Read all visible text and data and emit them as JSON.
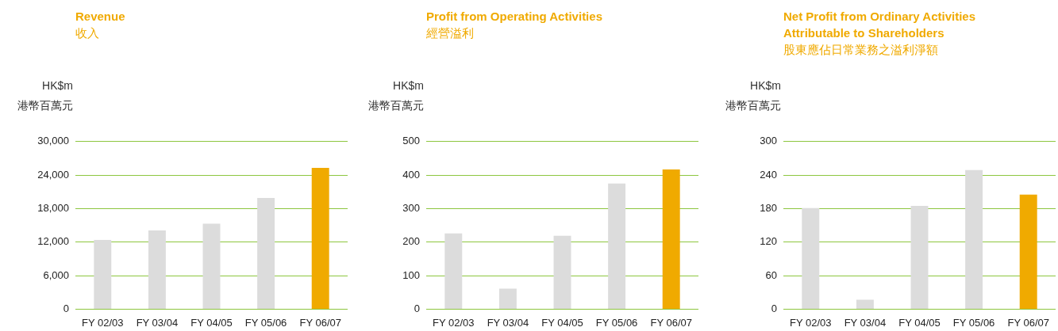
{
  "chart_data": [
    {
      "type": "bar",
      "title": "Revenue",
      "subtitle": "收入",
      "ylabel": "HK$m\n港幣百萬元",
      "categories": [
        "FY 02/03",
        "FY 03/04",
        "FY 04/05",
        "FY 05/06",
        "FY 06/07"
      ],
      "values": [
        12400,
        14100,
        15300,
        19900,
        25300
      ],
      "colors": [
        "#dcdcdc",
        "#dcdcdc",
        "#dcdcdc",
        "#dcdcdc",
        "#f0aa00"
      ],
      "ylim": [
        0,
        30000
      ],
      "yticks": [
        {
          "value": 0,
          "label": "0"
        },
        {
          "value": 6000,
          "label": "6,000"
        },
        {
          "value": 12000,
          "label": "12,000"
        },
        {
          "value": 18000,
          "label": "18,000"
        },
        {
          "value": 24000,
          "label": "24,000"
        },
        {
          "value": 30000,
          "label": "30,000"
        }
      ],
      "grid": "y"
    },
    {
      "type": "bar",
      "title": "Profit from Operating Activities",
      "subtitle": "經營溢利",
      "ylabel": "HK$m\n港幣百萬元",
      "categories": [
        "FY 02/03",
        "FY 03/04",
        "FY 04/05",
        "FY 05/06",
        "FY 06/07"
      ],
      "values": [
        226,
        61,
        219,
        375,
        417
      ],
      "colors": [
        "#dcdcdc",
        "#dcdcdc",
        "#dcdcdc",
        "#dcdcdc",
        "#f0aa00"
      ],
      "ylim": [
        0,
        500
      ],
      "yticks": [
        0,
        100,
        200,
        300,
        400,
        500
      ],
      "grid": "y"
    },
    {
      "type": "bar",
      "title": "Net Profit from Ordinary Activities Attributable to Shareholders",
      "subtitle": "股東應佔日常業務之溢利淨額",
      "ylabel": "HK$m\n港幣百萬元",
      "categories": [
        "FY 02/03",
        "FY 03/04",
        "FY 04/05",
        "FY 05/06",
        "FY 06/07"
      ],
      "values": [
        181,
        17,
        185,
        249,
        205
      ],
      "colors": [
        "#dcdcdc",
        "#dcdcdc",
        "#dcdcdc",
        "#dcdcdc",
        "#f0aa00"
      ],
      "ylim": [
        0,
        300
      ],
      "yticks": [
        0,
        60,
        120,
        180,
        240,
        300
      ],
      "grid": "y"
    }
  ]
}
